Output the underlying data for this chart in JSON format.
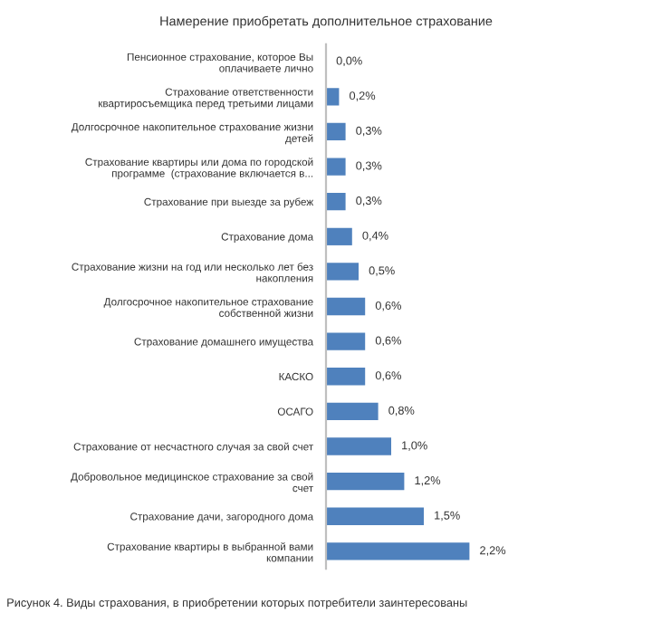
{
  "chart_data": {
    "type": "bar",
    "orientation": "horizontal",
    "title": "Намерение приобретать дополнительное страхование",
    "categories": [
      "Пенсионное страхование, которое Вы\nоплачиваете лично",
      "Страхование ответственности\nквартиросъемщика перед третьими лицами",
      "Долгосрочное накопительное страхование жизни\nдетей",
      "Страхование квартиры или дома по городской\nпрограмме  (страхование включается в...",
      "Страхование при выезде за рубеж",
      "Страхование дома",
      "Страхование жизни на год или несколько лет без\nнакопления",
      "Долгосрочное накопительное страхование\nсобственной жизни",
      "Страхование домашнего имущества",
      "КАСКО",
      "ОСАГО",
      "Страхование от несчастного случая за свой счет",
      "Добровольное медицинское страхование за свой\nсчет",
      "Страхование дачи, загородного дома",
      "Страхование квартиры в выбранной вами\nкомпании"
    ],
    "values": [
      0.0,
      0.2,
      0.3,
      0.3,
      0.3,
      0.4,
      0.5,
      0.6,
      0.6,
      0.6,
      0.8,
      1.0,
      1.2,
      1.5,
      2.2
    ],
    "value_labels": [
      "0,0%",
      "0,2%",
      "0,3%",
      "0,3%",
      "0,3%",
      "0,4%",
      "0,5%",
      "0,6%",
      "0,6%",
      "0,6%",
      "0,8%",
      "1,0%",
      "1,2%",
      "1,5%",
      "2,2%"
    ],
    "color": "#4f81bd",
    "annotations": [
      "Рисунок 4. Виды страхования, в приобретении которых потребители заинтересованы"
    ]
  }
}
